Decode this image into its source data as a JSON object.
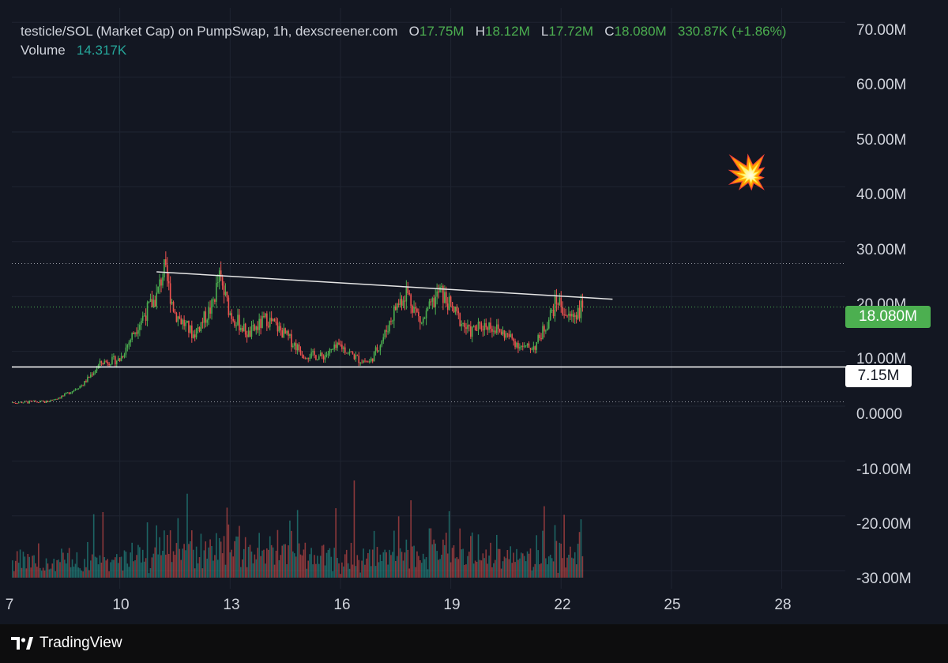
{
  "header": {
    "title": "testicle/SOL (Market Cap) on PumpSwap, 1h, dexscreener.com",
    "o_label": "O",
    "o_value": "17.75M",
    "h_label": "H",
    "h_value": "18.12M",
    "l_label": "L",
    "l_value": "17.72M",
    "c_label": "C",
    "c_value": "18.080M",
    "change": "330.87K (+1.86%)",
    "volume_label": "Volume",
    "volume_value": "14.317K"
  },
  "y_axis": [
    "70.00M",
    "60.00M",
    "50.00M",
    "40.00M",
    "30.00M",
    "20.00M",
    "10.00M",
    "0.0000",
    "-10.00M",
    "-20.00M",
    "-30.00M"
  ],
  "x_axis": [
    "7",
    "10",
    "13",
    "16",
    "19",
    "22",
    "25",
    "28"
  ],
  "price_badge": "18.080M",
  "level_badge": "7.15M",
  "emoji": "💥",
  "brand": "TradingView",
  "colors": {
    "up": "#4caf50",
    "down": "#ef5350",
    "vol_up": "#26a69a",
    "vol_down": "#ef5350",
    "background": "#131722"
  },
  "chart_data": {
    "type": "candlestick",
    "title": "testicle/SOL (Market Cap) on PumpSwap, 1h, dexscreener.com",
    "ylim": [
      -30000000,
      70000000
    ],
    "x_ticks": [
      "7",
      "10",
      "13",
      "16",
      "19",
      "22",
      "25",
      "28"
    ],
    "last_close": 18080000,
    "horizontal_levels": [
      {
        "value": 7150000,
        "style": "solid",
        "label": "7.15M"
      },
      {
        "value": 18080000,
        "style": "dotted",
        "label": "18.080M"
      },
      {
        "value": 26000000,
        "style": "dotted"
      },
      {
        "value": 800000,
        "style": "dotted"
      }
    ],
    "trendline": {
      "from": {
        "x": "11",
        "y": 24500000
      },
      "to": {
        "x": "23.4",
        "y": 19500000
      }
    },
    "price_path": [
      {
        "x": "7",
        "y": 700000
      },
      {
        "x": "8",
        "y": 800000
      },
      {
        "x": "8.5",
        "y": 2000000
      },
      {
        "x": "9",
        "y": 4000000
      },
      {
        "x": "9.5",
        "y": 8000000
      },
      {
        "x": "10",
        "y": 8500000
      },
      {
        "x": "10.5",
        "y": 15000000
      },
      {
        "x": "11",
        "y": 20000000
      },
      {
        "x": "11.2",
        "y": 25000000
      },
      {
        "x": "11.5",
        "y": 17000000
      },
      {
        "x": "12",
        "y": 13000000
      },
      {
        "x": "12.5",
        "y": 18000000
      },
      {
        "x": "12.7",
        "y": 23500000
      },
      {
        "x": "13",
        "y": 17000000
      },
      {
        "x": "13.5",
        "y": 13000000
      },
      {
        "x": "14",
        "y": 16000000
      },
      {
        "x": "14.5",
        "y": 13000000
      },
      {
        "x": "15",
        "y": 9500000
      },
      {
        "x": "15.5",
        "y": 9000000
      },
      {
        "x": "16",
        "y": 11000000
      },
      {
        "x": "16.5",
        "y": 8500000
      },
      {
        "x": "16.8",
        "y": 8000000
      },
      {
        "x": "17.2",
        "y": 13000000
      },
      {
        "x": "17.5",
        "y": 18000000
      },
      {
        "x": "17.8",
        "y": 21000000
      },
      {
        "x": "18.2",
        "y": 15000000
      },
      {
        "x": "18.7",
        "y": 21000000
      },
      {
        "x": "19",
        "y": 18000000
      },
      {
        "x": "19.5",
        "y": 13500000
      },
      {
        "x": "20",
        "y": 15000000
      },
      {
        "x": "20.5",
        "y": 13000000
      },
      {
        "x": "21",
        "y": 10500000
      },
      {
        "x": "21.3",
        "y": 11000000
      },
      {
        "x": "21.6",
        "y": 15000000
      },
      {
        "x": "21.9",
        "y": 19500000
      },
      {
        "x": "22.2",
        "y": 16000000
      },
      {
        "x": "22.6",
        "y": 18080000
      }
    ]
  }
}
